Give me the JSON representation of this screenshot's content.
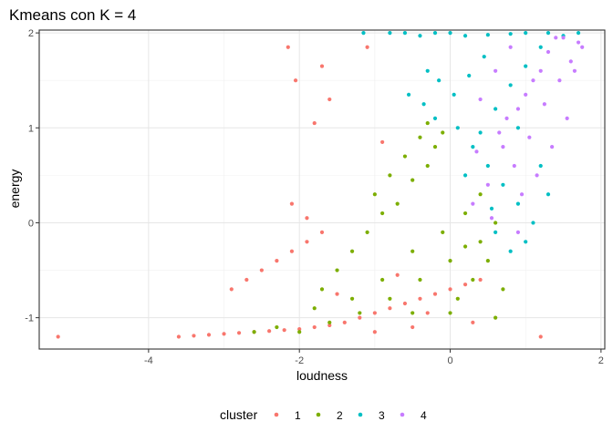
{
  "chart_data": {
    "type": "scatter",
    "title": "Kmeans con K = 4",
    "xlabel": "loudness",
    "ylabel": "energy",
    "xlim": [
      -5.45,
      2.05
    ],
    "ylim": [
      -1.33,
      2.03
    ],
    "x_ticks": [
      -4,
      -2,
      0,
      2
    ],
    "x_tick_labels": [
      "-4",
      "-2",
      "0",
      "2"
    ],
    "y_ticks": [
      -1,
      0,
      1,
      2
    ],
    "y_tick_labels": [
      "-1",
      "0",
      "1",
      "2"
    ],
    "grid": true,
    "legend": {
      "title": "cluster",
      "position": "bottom",
      "entries": [
        "1",
        "2",
        "3",
        "4"
      ]
    },
    "series": [
      {
        "name": "1",
        "color": "#F8766D",
        "points": [
          [
            -5.2,
            -1.2
          ],
          [
            -3.6,
            -1.2
          ],
          [
            -3.4,
            -1.19
          ],
          [
            -3.2,
            -1.18
          ],
          [
            -3.0,
            -1.17
          ],
          [
            -2.8,
            -1.16
          ],
          [
            -2.6,
            -1.15
          ],
          [
            -2.4,
            -1.14
          ],
          [
            -2.2,
            -1.13
          ],
          [
            -2.0,
            -1.12
          ],
          [
            -1.8,
            -1.1
          ],
          [
            -1.6,
            -1.08
          ],
          [
            -1.4,
            -1.05
          ],
          [
            -1.2,
            -1.0
          ],
          [
            -1.0,
            -0.95
          ],
          [
            -0.8,
            -0.9
          ],
          [
            -0.6,
            -0.85
          ],
          [
            -0.4,
            -0.8
          ],
          [
            -0.2,
            -0.75
          ],
          [
            0.0,
            -0.7
          ],
          [
            0.2,
            -0.65
          ],
          [
            0.4,
            -0.6
          ],
          [
            -2.9,
            -0.7
          ],
          [
            -2.7,
            -0.6
          ],
          [
            -2.5,
            -0.5
          ],
          [
            -2.3,
            -0.4
          ],
          [
            -2.1,
            -0.3
          ],
          [
            -1.9,
            -0.2
          ],
          [
            -2.1,
            0.2
          ],
          [
            -1.9,
            0.05
          ],
          [
            -1.7,
            -0.1
          ],
          [
            -2.15,
            1.85
          ],
          [
            -2.05,
            1.5
          ],
          [
            -1.7,
            1.65
          ],
          [
            -1.6,
            1.3
          ],
          [
            -1.8,
            1.05
          ],
          [
            -1.1,
            1.85
          ],
          [
            -0.9,
            0.85
          ],
          [
            1.2,
            -1.2
          ],
          [
            -1.0,
            -1.15
          ],
          [
            -0.5,
            -1.1
          ],
          [
            0.3,
            -1.05
          ],
          [
            -0.3,
            -0.95
          ],
          [
            -1.5,
            -0.75
          ],
          [
            -0.7,
            -0.55
          ]
        ]
      },
      {
        "name": "2",
        "color": "#7CAE00",
        "points": [
          [
            -2.0,
            -1.15
          ],
          [
            -1.6,
            -1.05
          ],
          [
            -1.2,
            -0.95
          ],
          [
            -0.8,
            -0.8
          ],
          [
            -0.4,
            -0.6
          ],
          [
            0.0,
            -0.4
          ],
          [
            0.4,
            -0.2
          ],
          [
            0.6,
            0.0
          ],
          [
            -1.3,
            -0.8
          ],
          [
            -0.9,
            -0.6
          ],
          [
            -0.5,
            -0.3
          ],
          [
            -0.1,
            -0.1
          ],
          [
            0.2,
            0.1
          ],
          [
            0.4,
            0.3
          ],
          [
            -0.7,
            0.2
          ],
          [
            -0.5,
            0.45
          ],
          [
            -0.3,
            0.6
          ],
          [
            -0.2,
            0.8
          ],
          [
            -0.4,
            0.9
          ],
          [
            -0.3,
            1.05
          ],
          [
            -0.1,
            0.95
          ],
          [
            -1.0,
            0.3
          ],
          [
            -0.8,
            0.5
          ],
          [
            -0.6,
            0.7
          ],
          [
            -1.3,
            -0.3
          ],
          [
            -1.1,
            -0.1
          ],
          [
            -0.9,
            0.1
          ],
          [
            -1.5,
            -0.5
          ],
          [
            -1.7,
            -0.7
          ],
          [
            0.1,
            -0.8
          ],
          [
            0.3,
            -0.6
          ],
          [
            0.5,
            -0.4
          ],
          [
            0.7,
            -0.7
          ],
          [
            -2.6,
            -1.15
          ],
          [
            -2.3,
            -1.1
          ],
          [
            -0.5,
            -0.95
          ],
          [
            0.0,
            -0.95
          ],
          [
            0.6,
            -1.0
          ],
          [
            -1.8,
            -0.9
          ],
          [
            0.2,
            -0.25
          ]
        ]
      },
      {
        "name": "3",
        "color": "#00BFC4",
        "points": [
          [
            -1.15,
            2.0
          ],
          [
            -0.8,
            2.0
          ],
          [
            -0.6,
            2.0
          ],
          [
            -0.4,
            1.97
          ],
          [
            -0.2,
            2.0
          ],
          [
            0.0,
            2.0
          ],
          [
            0.2,
            1.97
          ],
          [
            0.5,
            1.98
          ],
          [
            0.8,
            1.99
          ],
          [
            1.0,
            2.0
          ],
          [
            1.3,
            2.0
          ],
          [
            1.5,
            1.97
          ],
          [
            1.7,
            2.0
          ],
          [
            -0.3,
            1.6
          ],
          [
            -0.15,
            1.5
          ],
          [
            -0.55,
            1.35
          ],
          [
            -0.35,
            1.25
          ],
          [
            -0.2,
            1.1
          ],
          [
            0.05,
            1.35
          ],
          [
            0.25,
            1.55
          ],
          [
            0.45,
            1.75
          ],
          [
            0.1,
            1.0
          ],
          [
            0.3,
            0.8
          ],
          [
            0.5,
            0.6
          ],
          [
            0.7,
            0.4
          ],
          [
            0.9,
            0.2
          ],
          [
            1.1,
            0.0
          ],
          [
            1.3,
            0.3
          ],
          [
            0.6,
            1.2
          ],
          [
            0.8,
            1.45
          ],
          [
            1.0,
            1.65
          ],
          [
            1.2,
            1.85
          ],
          [
            0.4,
            0.95
          ],
          [
            0.2,
            0.5
          ],
          [
            0.6,
            -0.1
          ],
          [
            0.8,
            -0.3
          ],
          [
            1.0,
            -0.2
          ],
          [
            1.2,
            0.6
          ],
          [
            0.9,
            1.0
          ],
          [
            0.55,
            0.15
          ]
        ]
      },
      {
        "name": "4",
        "color": "#C77CFF",
        "points": [
          [
            0.3,
            0.2
          ],
          [
            0.5,
            0.4
          ],
          [
            0.7,
            0.8
          ],
          [
            0.9,
            1.2
          ],
          [
            1.1,
            1.5
          ],
          [
            1.3,
            1.8
          ],
          [
            1.5,
            1.95
          ],
          [
            1.7,
            1.9
          ],
          [
            0.4,
            1.3
          ],
          [
            0.6,
            1.6
          ],
          [
            0.8,
            1.85
          ],
          [
            0.65,
            0.95
          ],
          [
            0.85,
            0.6
          ],
          [
            1.05,
            0.9
          ],
          [
            1.25,
            1.25
          ],
          [
            1.45,
            1.5
          ],
          [
            1.6,
            1.7
          ],
          [
            1.75,
            1.85
          ],
          [
            0.55,
            0.05
          ],
          [
            0.95,
            0.3
          ],
          [
            1.15,
            0.5
          ],
          [
            1.35,
            0.8
          ],
          [
            1.55,
            1.1
          ],
          [
            1.4,
            1.95
          ],
          [
            1.2,
            1.6
          ],
          [
            1.0,
            1.35
          ],
          [
            0.75,
            1.1
          ],
          [
            0.35,
            0.75
          ],
          [
            1.65,
            1.6
          ],
          [
            0.9,
            -0.1
          ]
        ]
      }
    ]
  }
}
